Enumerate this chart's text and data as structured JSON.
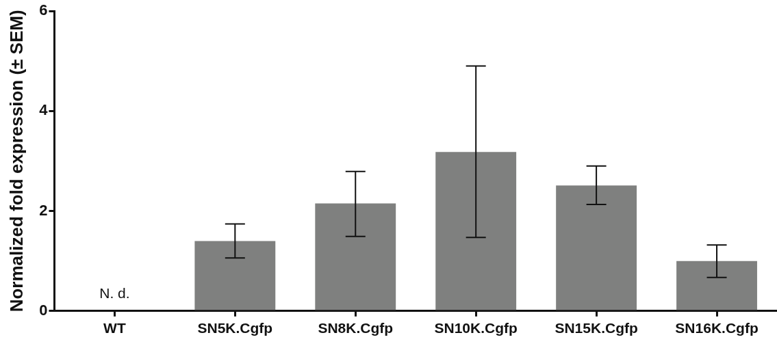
{
  "chart_data": {
    "type": "bar",
    "ylabel": "Normalized fold expression (± SEM)",
    "categories": [
      "WT",
      "SN5K.Cgfp",
      "SN8K.Cgfp",
      "SN10K.Cgfp",
      "SN15K.Cgfp",
      "SN16K.Cgfp"
    ],
    "values": [
      null,
      1.4,
      2.15,
      3.18,
      2.51,
      1.0
    ],
    "errors": [
      null,
      [
        1.06,
        1.74
      ],
      [
        1.49,
        2.79
      ],
      [
        1.47,
        4.9
      ],
      [
        2.13,
        2.9
      ],
      [
        0.67,
        1.32
      ]
    ],
    "color": "#7f807f",
    "ylim": [
      0,
      6
    ],
    "yticks": [
      0,
      2,
      4,
      6
    ],
    "annotations": [
      "N. d."
    ]
  }
}
